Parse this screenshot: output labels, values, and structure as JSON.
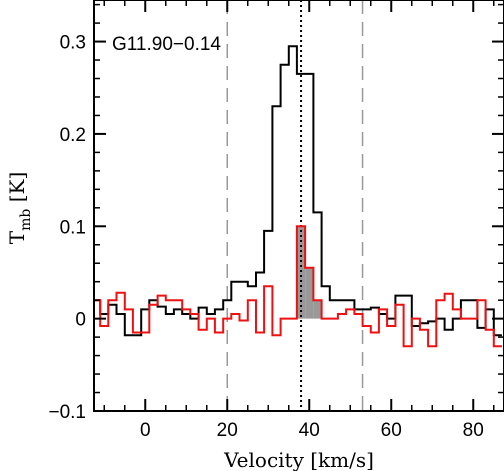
{
  "chart_data": {
    "type": "line",
    "source_label": "G11.90−0.14",
    "xlabel": "Velocity [km/s]",
    "ylabel": "T",
    "ylabel_sub": "mb",
    "ylabel_unit": " [K]",
    "xlim": [
      -12.5,
      87.5
    ],
    "ylim": [
      -0.1,
      0.345
    ],
    "xticks": [
      0,
      20,
      40,
      60,
      80
    ],
    "yticks": [
      -0.1,
      0,
      0.1,
      0.2,
      0.3
    ],
    "ytick_labels": [
      "−0.1",
      "0",
      "0.1",
      "0.2",
      "0.3"
    ],
    "vlines": [
      {
        "x": 20,
        "style": "dashed",
        "color": "#999999"
      },
      {
        "x": 38,
        "style": "dotted",
        "color": "#000000"
      },
      {
        "x": 53,
        "style": "dashed",
        "color": "#999999"
      }
    ],
    "colors": {
      "series_1": "#000000",
      "series_2": "#ee1111",
      "fill": "#999999"
    },
    "series": [
      {
        "style": "step",
        "x": [
          -12,
          -10,
          -8,
          -6,
          -4,
          -2,
          0,
          2,
          4,
          6,
          8,
          10,
          12,
          14,
          16,
          18,
          20,
          22,
          24,
          26,
          28,
          30,
          32,
          34,
          36,
          38,
          40,
          42,
          44,
          46,
          48,
          50,
          52,
          54,
          56,
          58,
          60,
          62,
          64,
          66,
          68,
          70,
          72,
          74,
          76,
          78,
          80,
          82,
          84,
          86
        ],
        "y": [
          0.02,
          0.005,
          0.015,
          0.005,
          -0.018,
          -0.018,
          0.01,
          0.02,
          0.013,
          0.005,
          0.01,
          0.005,
          0.0,
          0.012,
          0.005,
          0.01,
          0.02,
          0.04,
          0.04,
          0.035,
          0.05,
          0.095,
          0.23,
          0.275,
          0.295,
          0.265,
          0.265,
          0.115,
          0.035,
          0.02,
          0.02,
          0.02,
          0.01,
          0.01,
          0.012,
          0.005,
          0.0,
          0.025,
          0.025,
          -0.008,
          -0.005,
          -0.003,
          0.0,
          -0.012,
          0.0,
          0.02,
          0.02,
          -0.01,
          0.01,
          -0.018
        ]
      },
      {
        "style": "step",
        "x": [
          -12,
          -10,
          -8,
          -6,
          -4,
          -2,
          0,
          2,
          4,
          6,
          8,
          10,
          12,
          14,
          16,
          18,
          20,
          22,
          24,
          26,
          28,
          30,
          32,
          34,
          36,
          38,
          40,
          42,
          44,
          46,
          48,
          50,
          52,
          54,
          56,
          58,
          60,
          62,
          64,
          66,
          68,
          70,
          72,
          74,
          76,
          78,
          80,
          82,
          84,
          86
        ],
        "y": [
          0.02,
          -0.008,
          0.02,
          0.028,
          0.01,
          -0.015,
          -0.015,
          0.015,
          0.025,
          0.02,
          0.02,
          0.01,
          0.005,
          -0.012,
          0.0,
          -0.015,
          0.0,
          0.005,
          -0.002,
          0.02,
          -0.015,
          0.035,
          -0.018,
          0.0,
          0.0,
          0.1,
          0.055,
          0.02,
          0.0,
          0.0,
          0.005,
          0.01,
          0.005,
          -0.008,
          -0.015,
          0.01,
          -0.008,
          0.015,
          -0.03,
          0.0,
          -0.012,
          -0.03,
          0.02,
          0.027,
          0.01,
          0.0,
          0.0,
          0.02,
          -0.012,
          -0.03
        ]
      }
    ],
    "shaded_region": {
      "x_start": 37,
      "x_end": 44,
      "color": "#999999"
    }
  }
}
